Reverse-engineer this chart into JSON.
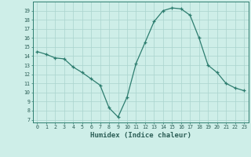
{
  "x": [
    0,
    1,
    2,
    3,
    4,
    5,
    6,
    7,
    8,
    9,
    10,
    11,
    12,
    13,
    14,
    15,
    16,
    17,
    18,
    19,
    20,
    21,
    22,
    23
  ],
  "y": [
    14.5,
    14.2,
    13.8,
    13.7,
    12.8,
    12.2,
    11.5,
    10.8,
    8.3,
    7.3,
    9.5,
    13.2,
    15.5,
    17.8,
    19.0,
    19.3,
    19.2,
    18.5,
    16.0,
    13.0,
    12.2,
    11.0,
    10.5,
    10.2
  ],
  "xlabel": "Humidex (Indice chaleur)",
  "ylim": [
    6.7,
    20.0
  ],
  "xlim": [
    -0.5,
    23.5
  ],
  "yticks": [
    7,
    8,
    9,
    10,
    11,
    12,
    13,
    14,
    15,
    16,
    17,
    18,
    19
  ],
  "xticks": [
    0,
    1,
    2,
    3,
    4,
    5,
    6,
    7,
    8,
    9,
    10,
    11,
    12,
    13,
    14,
    15,
    16,
    17,
    18,
    19,
    20,
    21,
    22,
    23
  ],
  "line_color": "#2d7d6f",
  "bg_color": "#ceeee8",
  "grid_color": "#aad4ce",
  "tick_color": "#2d5f57",
  "xlabel_color": "#2d5f57"
}
